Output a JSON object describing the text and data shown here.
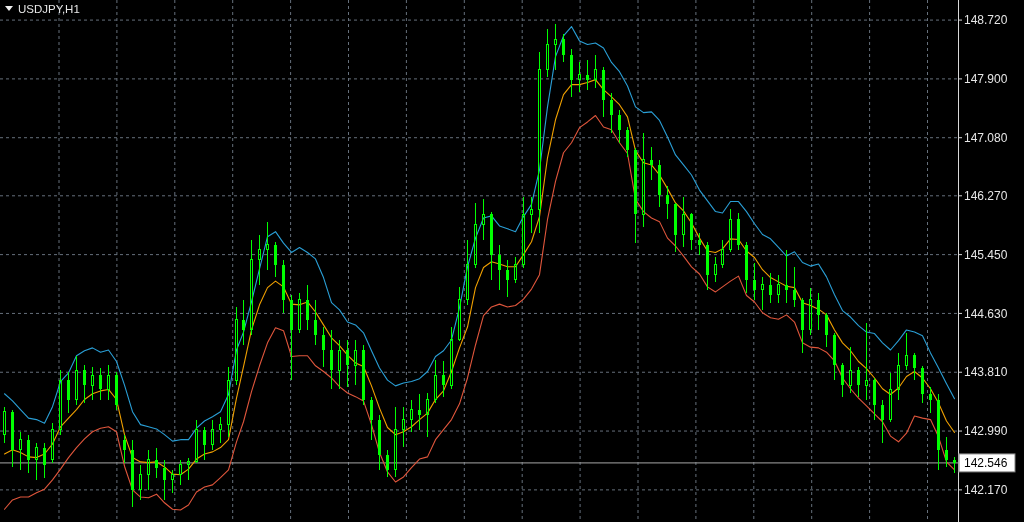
{
  "chart_data": {
    "type": "candlestick",
    "title": "USDJPY,H1",
    "color": "#00ff00",
    "categories": [
      null,
      null,
      null,
      null,
      null,
      null,
      null,
      null,
      null,
      null,
      null,
      null,
      null,
      null,
      null,
      null,
      null,
      null,
      null,
      null,
      null,
      null,
      null,
      null,
      null,
      null,
      null,
      null,
      null,
      null,
      null,
      null,
      null,
      null,
      null,
      null,
      null,
      null,
      null,
      null,
      null,
      null,
      null,
      null,
      null,
      null,
      null,
      null,
      null,
      null,
      null,
      null,
      null,
      null,
      null,
      null,
      null,
      null,
      null,
      null,
      null,
      null,
      null,
      null,
      null,
      null,
      null,
      null,
      null,
      null,
      null,
      null,
      null,
      null,
      null,
      null,
      null,
      null,
      null,
      null,
      null,
      null,
      null,
      null,
      null,
      null,
      null,
      null,
      null,
      null,
      null,
      null,
      null,
      null,
      null,
      null,
      null,
      null,
      null,
      null,
      null,
      null,
      null,
      null,
      null,
      null,
      null,
      null,
      null,
      null,
      null,
      null,
      null,
      null,
      null,
      null,
      null,
      null,
      null,
      null
    ],
    "ohlc": [
      [
        142.94,
        143.33,
        142.83,
        143.26
      ],
      [
        143.26,
        143.29,
        142.49,
        142.73
      ],
      [
        142.73,
        142.97,
        142.45,
        142.87
      ],
      [
        142.87,
        142.94,
        142.41,
        142.59
      ],
      [
        142.59,
        142.83,
        142.31,
        142.76
      ],
      [
        142.76,
        142.83,
        142.34,
        142.52
      ],
      [
        142.59,
        143.1,
        142.55,
        143.01
      ],
      [
        143.01,
        143.84,
        142.94,
        143.7
      ],
      [
        143.7,
        143.82,
        143.24,
        143.43
      ],
      [
        143.43,
        144.03,
        143.36,
        143.84
      ],
      [
        143.84,
        143.91,
        143.38,
        143.63
      ],
      [
        143.63,
        143.89,
        143.43,
        143.77
      ],
      [
        143.77,
        143.87,
        143.43,
        143.57
      ],
      [
        143.57,
        143.91,
        143.43,
        143.77
      ],
      [
        143.77,
        143.82,
        143.29,
        143.36
      ],
      [
        142.87,
        142.94,
        142.55,
        142.73
      ],
      [
        142.73,
        142.87,
        141.93,
        142.17
      ],
      [
        142.17,
        142.52,
        142.03,
        142.38
      ],
      [
        142.38,
        142.73,
        142.17,
        142.59
      ],
      [
        142.59,
        142.76,
        142.34,
        142.48
      ],
      [
        142.48,
        142.59,
        142.03,
        142.31
      ],
      [
        142.31,
        142.45,
        142.13,
        142.38
      ],
      [
        142.38,
        142.59,
        142.24,
        142.52
      ],
      [
        142.52,
        142.62,
        142.31,
        142.56
      ],
      [
        142.56,
        143.15,
        142.55,
        143.01
      ],
      [
        143.01,
        143.05,
        142.59,
        142.8
      ],
      [
        142.8,
        143.15,
        142.73,
        143.01
      ],
      [
        143.01,
        143.19,
        142.83,
        143.08
      ],
      [
        143.08,
        143.89,
        142.91,
        143.7
      ],
      [
        143.7,
        144.72,
        143.63,
        144.54
      ],
      [
        144.54,
        144.82,
        144.19,
        144.4
      ],
      [
        144.4,
        145.66,
        144.33,
        145.38
      ],
      [
        145.38,
        145.73,
        145.03,
        145.52
      ],
      [
        145.52,
        145.91,
        145.24,
        145.59
      ],
      [
        145.59,
        145.62,
        145.14,
        145.31
      ],
      [
        145.31,
        145.38,
        144.64,
        144.82
      ],
      [
        144.82,
        144.89,
        143.7,
        144.4
      ],
      [
        144.4,
        144.92,
        144.36,
        144.82
      ],
      [
        144.82,
        145.03,
        144.4,
        144.54
      ],
      [
        144.54,
        144.82,
        144.19,
        144.33
      ],
      [
        144.33,
        144.44,
        143.89,
        144.12
      ],
      [
        144.12,
        144.4,
        143.57,
        143.84
      ],
      [
        143.84,
        144.26,
        143.57,
        144.12
      ],
      [
        144.12,
        144.26,
        143.61,
        143.91
      ],
      [
        143.91,
        144.26,
        143.63,
        144.12
      ],
      [
        144.12,
        144.19,
        143.36,
        143.43
      ],
      [
        143.43,
        143.46,
        142.87,
        143.15
      ],
      [
        143.15,
        143.22,
        142.45,
        142.66
      ],
      [
        142.66,
        142.73,
        142.35,
        142.45
      ],
      [
        142.45,
        143.33,
        142.35,
        143.01
      ],
      [
        143.01,
        143.33,
        142.77,
        143.15
      ],
      [
        143.15,
        143.43,
        142.98,
        143.29
      ],
      [
        143.29,
        143.5,
        143.01,
        143.22
      ],
      [
        143.22,
        143.52,
        142.91,
        143.43
      ],
      [
        143.43,
        143.98,
        143.38,
        143.77
      ],
      [
        143.77,
        143.96,
        143.47,
        143.63
      ],
      [
        143.63,
        144.44,
        143.57,
        144.26
      ],
      [
        144.26,
        145.0,
        144.24,
        144.82
      ],
      [
        144.82,
        145.66,
        144.75,
        145.31
      ],
      [
        145.31,
        146.17,
        145.27,
        145.87
      ],
      [
        145.87,
        146.22,
        145.66,
        146.01
      ],
      [
        146.01,
        146.05,
        145.1,
        145.45
      ],
      [
        145.45,
        145.59,
        144.96,
        145.24
      ],
      [
        145.24,
        145.38,
        144.86,
        145.1
      ],
      [
        145.1,
        145.41,
        145.06,
        145.31
      ],
      [
        145.31,
        146.26,
        145.27,
        146.01
      ],
      [
        146.01,
        146.26,
        145.75,
        146.08
      ],
      [
        146.08,
        148.27,
        145.75,
        148.03
      ],
      [
        148.03,
        148.59,
        147.93,
        148.38
      ],
      [
        148.38,
        148.66,
        148.03,
        148.45
      ],
      [
        148.45,
        148.52,
        148.14,
        148.24
      ],
      [
        148.24,
        148.31,
        147.65,
        147.89
      ],
      [
        147.89,
        148.13,
        147.72,
        147.96
      ],
      [
        147.96,
        148.17,
        147.75,
        147.89
      ],
      [
        147.89,
        148.24,
        147.78,
        148.03
      ],
      [
        148.03,
        148.06,
        147.37,
        147.61
      ],
      [
        147.61,
        147.71,
        147.15,
        147.4
      ],
      [
        147.4,
        147.47,
        147.01,
        147.19
      ],
      [
        147.19,
        147.23,
        146.81,
        146.91
      ],
      [
        146.91,
        146.94,
        145.61,
        146.01
      ],
      [
        146.01,
        147.15,
        145.84,
        146.77
      ],
      [
        146.77,
        146.95,
        146.49,
        146.7
      ],
      [
        146.7,
        146.77,
        146.12,
        146.28
      ],
      [
        146.28,
        146.4,
        145.94,
        146.15
      ],
      [
        146.15,
        146.17,
        145.48,
        145.73
      ],
      [
        145.73,
        146.26,
        145.56,
        146.01
      ],
      [
        146.01,
        146.03,
        145.52,
        145.66
      ],
      [
        145.66,
        145.75,
        145.45,
        145.59
      ],
      [
        145.59,
        145.62,
        144.96,
        145.17
      ],
      [
        145.17,
        145.42,
        145.07,
        145.31
      ],
      [
        145.31,
        145.66,
        145.27,
        145.52
      ],
      [
        145.52,
        146.08,
        145.49,
        145.94
      ],
      [
        145.94,
        146.03,
        145.52,
        145.59
      ],
      [
        145.59,
        145.62,
        144.92,
        145.1
      ],
      [
        145.1,
        145.34,
        144.82,
        144.96
      ],
      [
        144.96,
        145.14,
        144.68,
        145.03
      ],
      [
        145.03,
        145.2,
        144.78,
        144.89
      ],
      [
        144.89,
        145.17,
        144.78,
        145.03
      ],
      [
        145.03,
        145.52,
        144.78,
        144.96
      ],
      [
        144.96,
        145.28,
        144.72,
        144.82
      ],
      [
        144.82,
        144.85,
        144.08,
        144.4
      ],
      [
        144.4,
        144.99,
        144.33,
        144.82
      ],
      [
        144.82,
        144.92,
        144.4,
        144.61
      ],
      [
        144.61,
        144.64,
        144.16,
        144.33
      ],
      [
        144.33,
        144.36,
        143.7,
        143.91
      ],
      [
        143.91,
        143.94,
        143.47,
        143.63
      ],
      [
        143.63,
        144.16,
        143.52,
        143.84
      ],
      [
        143.84,
        143.89,
        143.47,
        143.63
      ],
      [
        143.63,
        144.5,
        143.43,
        143.7
      ],
      [
        143.7,
        143.73,
        143.15,
        143.36
      ],
      [
        143.36,
        143.43,
        142.83,
        143.15
      ],
      [
        143.15,
        143.8,
        143.12,
        143.57
      ],
      [
        143.57,
        144.08,
        143.43,
        143.91
      ],
      [
        143.91,
        144.36,
        143.84,
        144.05
      ],
      [
        144.05,
        144.08,
        143.7,
        143.87
      ],
      [
        143.87,
        143.9,
        143.38,
        143.5
      ],
      [
        143.5,
        143.61,
        143.24,
        143.43
      ],
      [
        143.43,
        143.5,
        142.45,
        142.73
      ],
      [
        142.73,
        142.91,
        142.49,
        142.59
      ],
      [
        142.59,
        142.63,
        142.41,
        142.546
      ]
    ],
    "series": [
      {
        "type": "line",
        "color": "#2a9fd6",
        "values": [
          143.51,
          143.41,
          143.29,
          143.17,
          143.15,
          143.1,
          143.33,
          143.68,
          143.8,
          144.04,
          144.11,
          144.15,
          144.09,
          144.12,
          143.96,
          143.63,
          143.26,
          143.08,
          143.05,
          143.02,
          142.94,
          142.85,
          142.87,
          142.87,
          143.03,
          143.13,
          143.19,
          143.26,
          143.5,
          144.12,
          144.37,
          144.79,
          145.25,
          145.7,
          145.77,
          145.61,
          145.48,
          145.55,
          145.48,
          145.39,
          145.13,
          144.78,
          144.68,
          144.51,
          144.47,
          144.36,
          144.11,
          143.87,
          143.7,
          143.62,
          143.66,
          143.68,
          143.72,
          143.82,
          144.03,
          144.11,
          144.26,
          144.71,
          145.28,
          145.68,
          145.96,
          145.99,
          145.85,
          145.81,
          145.77,
          145.98,
          146.15,
          146.63,
          147.51,
          148.21,
          148.5,
          148.63,
          148.43,
          148.38,
          148.4,
          148.33,
          148.13,
          148.0,
          147.8,
          147.51,
          147.43,
          147.44,
          147.32,
          147.09,
          146.84,
          146.7,
          146.56,
          146.35,
          146.2,
          146.05,
          146.03,
          146.19,
          146.19,
          146.05,
          145.88,
          145.73,
          145.67,
          145.55,
          145.43,
          145.49,
          145.34,
          145.29,
          145.32,
          145.14,
          144.89,
          144.67,
          144.58,
          144.46,
          144.37,
          144.35,
          144.22,
          144.12,
          144.25,
          144.4,
          144.37,
          144.32,
          144.08,
          143.87,
          143.65,
          143.44
        ]
      },
      {
        "type": "line",
        "color": "#f0a000",
        "values": [
          142.67,
          142.73,
          142.69,
          142.63,
          142.62,
          142.67,
          142.81,
          143.05,
          143.17,
          143.29,
          143.43,
          143.51,
          143.55,
          143.57,
          143.43,
          142.94,
          142.62,
          142.56,
          142.55,
          142.56,
          142.49,
          142.39,
          142.38,
          142.46,
          142.6,
          142.67,
          142.7,
          142.76,
          142.87,
          143.45,
          143.89,
          144.4,
          144.75,
          144.99,
          145.08,
          145.0,
          144.76,
          144.75,
          144.79,
          144.65,
          144.47,
          144.29,
          144.18,
          144.05,
          143.94,
          143.89,
          143.62,
          143.31,
          143.04,
          142.94,
          142.98,
          143.05,
          143.15,
          143.24,
          143.43,
          143.55,
          143.82,
          144.15,
          144.44,
          144.99,
          145.27,
          145.35,
          145.32,
          145.28,
          145.28,
          145.45,
          145.63,
          145.98,
          146.8,
          147.33,
          147.68,
          147.82,
          147.82,
          147.85,
          147.89,
          147.75,
          147.65,
          147.54,
          147.37,
          146.9,
          146.73,
          146.7,
          146.56,
          146.37,
          146.17,
          146.06,
          145.89,
          145.68,
          145.5,
          145.48,
          145.53,
          145.67,
          145.66,
          145.5,
          145.41,
          145.24,
          145.13,
          145.07,
          145.01,
          144.99,
          144.78,
          144.74,
          144.69,
          144.61,
          144.4,
          144.22,
          144.11,
          143.96,
          143.86,
          143.73,
          143.58,
          143.5,
          143.59,
          143.75,
          143.82,
          143.73,
          143.58,
          143.38,
          143.13,
          142.97
        ]
      },
      {
        "type": "line",
        "color": "#e0563c",
        "values": [
          141.9,
          142.03,
          142.07,
          142.07,
          142.13,
          142.18,
          142.31,
          142.46,
          142.62,
          142.76,
          142.88,
          142.98,
          143.03,
          143.05,
          142.98,
          142.5,
          142.17,
          142.07,
          142.06,
          142.11,
          141.99,
          141.9,
          141.89,
          141.96,
          142.14,
          142.21,
          142.24,
          142.34,
          142.45,
          142.84,
          143.12,
          143.54,
          143.9,
          144.22,
          144.43,
          144.39,
          144.03,
          144.04,
          144.04,
          143.9,
          143.82,
          143.73,
          143.61,
          143.52,
          143.47,
          143.41,
          143.08,
          142.69,
          142.42,
          142.28,
          142.35,
          142.48,
          142.6,
          142.63,
          142.87,
          143.01,
          143.15,
          143.37,
          143.73,
          144.19,
          144.6,
          144.72,
          144.76,
          144.72,
          144.74,
          144.83,
          144.97,
          145.17,
          145.94,
          146.47,
          146.87,
          147.01,
          147.22,
          147.3,
          147.39,
          147.23,
          147.19,
          147.01,
          146.86,
          146.22,
          146.05,
          145.96,
          145.91,
          145.68,
          145.57,
          145.43,
          145.28,
          145.18,
          145.0,
          144.93,
          145.0,
          145.08,
          145.15,
          144.88,
          144.79,
          144.64,
          144.57,
          144.55,
          144.61,
          144.51,
          144.22,
          144.16,
          144.15,
          144.09,
          143.97,
          143.73,
          143.58,
          143.45,
          143.34,
          143.23,
          143.12,
          142.92,
          142.84,
          142.96,
          143.2,
          143.17,
          143.15,
          142.91,
          142.56,
          142.45
        ]
      }
    ],
    "ylim": [
      141.75,
      149.0
    ],
    "yticks": [
      {
        "value": 142.17,
        "label": "142.170"
      },
      {
        "value": 142.99,
        "label": "142.990"
      },
      {
        "value": 143.81,
        "label": "143.810"
      },
      {
        "value": 144.63,
        "label": "144.630"
      },
      {
        "value": 145.45,
        "label": "145.450"
      },
      {
        "value": 146.27,
        "label": "146.270"
      },
      {
        "value": 147.08,
        "label": "147.080"
      },
      {
        "value": 147.9,
        "label": "147.900"
      },
      {
        "value": 148.72,
        "label": "148.720"
      }
    ],
    "ref_lines": [
      {
        "axis": "y",
        "value": 142.546,
        "label": "142.546",
        "color": "#a8a8a8"
      }
    ],
    "grid": true,
    "tick_labels": "y"
  }
}
